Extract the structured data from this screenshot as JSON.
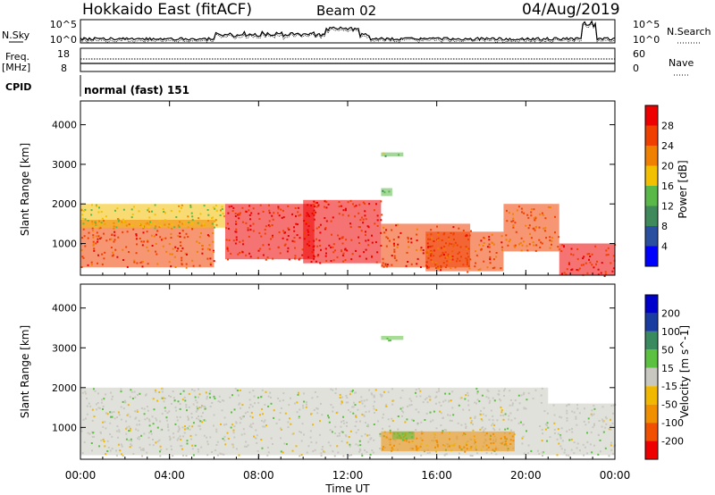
{
  "header": {
    "radar": "Hokkaido East (fitACF)",
    "beam": "Beam 02",
    "date": "04/Aug/2019"
  },
  "noise_panel": {
    "left_label": "N.Sky",
    "right_label": "N.Search",
    "left_ticks": [
      "10^5",
      "10^0"
    ],
    "right_ticks": [
      "10^5",
      "10^0"
    ]
  },
  "freq_panel": {
    "label": "Freq.",
    "unit": "[MHz]",
    "left_ticks": [
      "18",
      "8"
    ],
    "right_label": "Nave",
    "right_ticks": [
      "60",
      "0"
    ]
  },
  "cpid": {
    "label": "CPID",
    "value": "normal (fast) 151"
  },
  "colors": {
    "power_scale": [
      "#0000ff",
      "#2a4fa0",
      "#3f8a5a",
      "#5ab848",
      "#f2c000",
      "#f08000",
      "#f04000",
      "#ee0000"
    ],
    "velocity_scale": [
      "#ee0000",
      "#f05000",
      "#f09000",
      "#f0b800",
      "#c8c8c0",
      "#5cc040",
      "#3a8a60",
      "#1a3ca0",
      "#0000cc"
    ]
  },
  "chart_data": [
    {
      "type": "heatmap",
      "title": "",
      "xlabel": "Time UT",
      "ylabel": "Slant Range [km]",
      "x_ticks": [
        "00:00",
        "04:00",
        "08:00",
        "12:00",
        "16:00",
        "20:00",
        "00:00"
      ],
      "y_ticks": [
        "1000",
        "2000",
        "3000",
        "4000"
      ],
      "ylim": [
        200,
        4600
      ],
      "colorbar": {
        "label": "Power [dB]",
        "ticks": [
          "4",
          "8",
          "12",
          "16",
          "20",
          "24",
          "28"
        ],
        "range": [
          0,
          30
        ]
      },
      "regions": [
        {
          "t0": 0.0,
          "t1": 6.0,
          "r0": 400,
          "r1": 1600,
          "level": 26
        },
        {
          "t0": 0.0,
          "t1": 6.5,
          "r0": 1400,
          "r1": 2000,
          "level": 17
        },
        {
          "t0": 6.5,
          "t1": 10.5,
          "r0": 600,
          "r1": 2000,
          "level": 28
        },
        {
          "t0": 10.0,
          "t1": 13.5,
          "r0": 500,
          "r1": 2100,
          "level": 28
        },
        {
          "t0": 13.5,
          "t1": 17.5,
          "r0": 400,
          "r1": 1500,
          "level": 27
        },
        {
          "t0": 15.5,
          "t1": 19.0,
          "r0": 300,
          "r1": 1300,
          "level": 25
        },
        {
          "t0": 19.0,
          "t1": 21.5,
          "r0": 800,
          "r1": 2000,
          "level": 24
        },
        {
          "t0": 21.5,
          "t1": 24.0,
          "r0": 200,
          "r1": 1000,
          "level": 28
        },
        {
          "t0": 13.5,
          "t1": 14.5,
          "r0": 3200,
          "r1": 3300,
          "level": 14
        },
        {
          "t0": 13.5,
          "t1": 14.0,
          "r0": 2200,
          "r1": 2400,
          "level": 12
        }
      ]
    },
    {
      "type": "heatmap",
      "title": "",
      "xlabel": "Time UT",
      "ylabel": "Slant Range [km]",
      "x_ticks": [
        "00:00",
        "04:00",
        "08:00",
        "12:00",
        "16:00",
        "20:00",
        "00:00"
      ],
      "y_ticks": [
        "1000",
        "2000",
        "3000",
        "4000"
      ],
      "ylim": [
        200,
        4600
      ],
      "colorbar": {
        "label": "Velocity [m s^-1]",
        "ticks": [
          "200",
          "100",
          "50",
          "15",
          "-15",
          "-50",
          "-100",
          "-200"
        ],
        "range": [
          -250,
          250
        ]
      },
      "regions": [
        {
          "t0": 0.0,
          "t1": 21.0,
          "r0": 300,
          "r1": 2000,
          "level": 0
        },
        {
          "t0": 13.5,
          "t1": 19.5,
          "r0": 400,
          "r1": 900,
          "level": -60
        },
        {
          "t0": 21.0,
          "t1": 24.0,
          "r0": 300,
          "r1": 1600,
          "level": 0
        },
        {
          "t0": 14.0,
          "t1": 15.0,
          "r0": 700,
          "r1": 900,
          "level": 40
        },
        {
          "t0": 13.5,
          "t1": 14.5,
          "r0": 3200,
          "r1": 3300,
          "level": 30
        }
      ]
    }
  ]
}
